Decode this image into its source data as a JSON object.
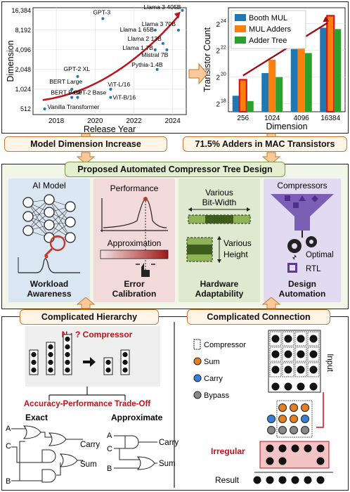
{
  "chart_left": {
    "type": "scatter",
    "xlabel": "Release Year",
    "ylabel": "Dimension",
    "x_ticks": [
      "2018",
      "2020",
      "2022",
      "2024"
    ],
    "y_ticks": [
      "512",
      "1,024",
      "2,048",
      "4,096",
      "8,192",
      "16,384"
    ],
    "log_y": true,
    "points": [
      {
        "label": "Vanilla Transformer",
        "x": 2017.4,
        "y": 512
      },
      {
        "label": "BERT Base",
        "x": 2018.8,
        "y": 768
      },
      {
        "label": "BERT Large",
        "x": 2018.8,
        "y": 1024
      },
      {
        "label": "GPT-2 Base",
        "x": 2019.1,
        "y": 768
      },
      {
        "label": "GPT-2 XL",
        "x": 2019.1,
        "y": 1600
      },
      {
        "label": "GPT-3",
        "x": 2020.4,
        "y": 12288
      },
      {
        "label": "ViT-L/16",
        "x": 2020.8,
        "y": 1024
      },
      {
        "label": "ViT-B/16",
        "x": 2020.8,
        "y": 768
      },
      {
        "label": "Llama 3 405B",
        "x": 2024.5,
        "y": 16384
      },
      {
        "label": "Llama 3 70B",
        "x": 2024.3,
        "y": 8192
      },
      {
        "label": "Llama 1 65B",
        "x": 2023.1,
        "y": 8192
      },
      {
        "label": "Llama 2 13B",
        "x": 2023.5,
        "y": 5120
      },
      {
        "label": "Llama 1 7B",
        "x": 2023.1,
        "y": 4096
      },
      {
        "label": "Mistral 7B",
        "x": 2023.7,
        "y": 4096
      },
      {
        "label": "Pythia-1.4B",
        "x": 2023.2,
        "y": 2048
      }
    ]
  },
  "chart_right": {
    "type": "bar",
    "xlabel": "Dimension",
    "ylabel": "Transistor Count",
    "categories": [
      "256",
      "1024",
      "4096",
      "16384"
    ],
    "y_ticks": [
      "2",
      "2",
      "2",
      "2"
    ],
    "y_tick_exps": [
      "18",
      "20",
      "22",
      "24"
    ],
    "series": [
      {
        "name": "Booth MUL",
        "color": "#1f77b4",
        "values": [
          18.6,
          20.3,
          22.1,
          23.7
        ]
      },
      {
        "name": "MUL Adders",
        "color": "#ff7f0e",
        "values": [
          19.8,
          21.3,
          23.0,
          24.6
        ]
      },
      {
        "name": "Adder Tree",
        "color": "#2ca02c",
        "values": [
          18.2,
          20.0,
          21.8,
          23.6
        ]
      }
    ]
  },
  "labels": {
    "model_dim": "Model Dimension Increase",
    "adders": "71.5% Adders in MAC Transistors",
    "proposed": "Proposed Automated Compressor Tree Design",
    "complicated_hierarchy": "Complicated Hierarchy",
    "complicated_connection": "Complicated Connection"
  },
  "panels": {
    "workload": {
      "title": "AI Model",
      "label1": "Workload",
      "label2": "Awareness"
    },
    "error": {
      "title": "Performance",
      "sub": "Approximation",
      "label1": "Error",
      "label2": "Calibration"
    },
    "hardware": {
      "bitwidth1": "Various",
      "bitwidth2": "Bit-Width",
      "height1": "Various",
      "height2": "Height",
      "label1": "Hardware",
      "label2": "Adaptability"
    },
    "design": {
      "title": "Compressors",
      "optimal": "Optimal",
      "rtl": "RTL",
      "label1": "Design",
      "label2": "Automation"
    }
  },
  "hierarchy": {
    "compressor_title": "N : ? Compressor",
    "tradeoff": "Accuracy-Performance Trade-Off",
    "exact": "Exact",
    "approximate": "Approximate",
    "carry": "Carry",
    "sum": "Sum",
    "in_a": "A",
    "in_b": "B",
    "in_c": "C"
  },
  "connection": {
    "legend": [
      "Compressor",
      "Sum",
      "Carry",
      "Bypass"
    ],
    "input": "Input",
    "irregular": "Irregular",
    "result": "Result"
  }
}
